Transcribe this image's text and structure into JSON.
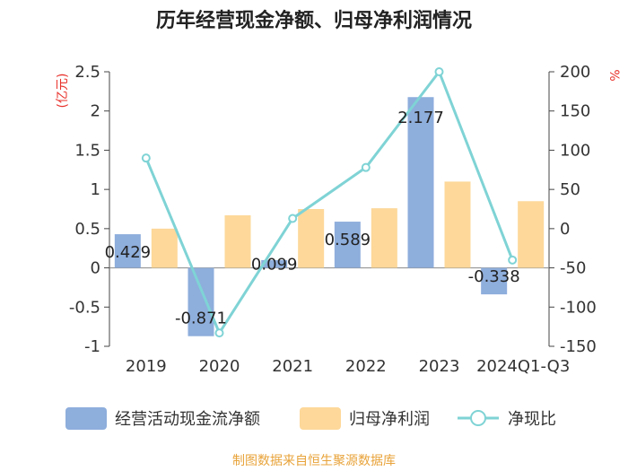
{
  "chart_data": {
    "type": "bar",
    "title": "历年经营现金净额、归母净利润情况",
    "categories": [
      "2019",
      "2020",
      "2021",
      "2022",
      "2023",
      "2024Q1-Q3"
    ],
    "series": [
      {
        "name": "经营活动现金流净额",
        "type": "bar",
        "axis": "left",
        "color": "#8eaedc",
        "values": [
          0.429,
          -0.871,
          0.099,
          0.589,
          2.177,
          -0.338
        ],
        "labels": [
          "0.429",
          "-0.871",
          "0.099",
          "0.589",
          "2.177",
          "-0.338"
        ]
      },
      {
        "name": "归母净利润",
        "type": "bar",
        "axis": "left",
        "color": "#fdd89a",
        "values": [
          0.5,
          0.67,
          0.75,
          0.76,
          1.1,
          0.85
        ]
      },
      {
        "name": "净现比",
        "type": "line",
        "axis": "right",
        "color": "#7fd3d5",
        "values": [
          90,
          -133,
          13,
          78,
          200,
          -40
        ]
      }
    ],
    "y_left": {
      "label": "(亿元)",
      "range": [
        -1,
        2.5
      ],
      "ticks": [
        2.5,
        2,
        1.5,
        1,
        0.5,
        0,
        -0.5,
        -1
      ],
      "tick_labels": [
        "2.5",
        "2",
        "1.5",
        "1",
        "0.5",
        "0",
        "-0.5",
        "-1"
      ]
    },
    "y_right": {
      "label": "%",
      "range": [
        -150,
        200
      ],
      "ticks": [
        200,
        150,
        100,
        50,
        0,
        -50,
        -100,
        -150
      ],
      "tick_labels": [
        "200",
        "150",
        "100",
        "50",
        "0",
        "-50",
        "-100",
        "-150"
      ]
    },
    "legend_position": "bottom",
    "unit_color": "#e8302a"
  },
  "source": {
    "text": "制图数据来自恒生聚源数据库",
    "color": "#e8a33a"
  }
}
